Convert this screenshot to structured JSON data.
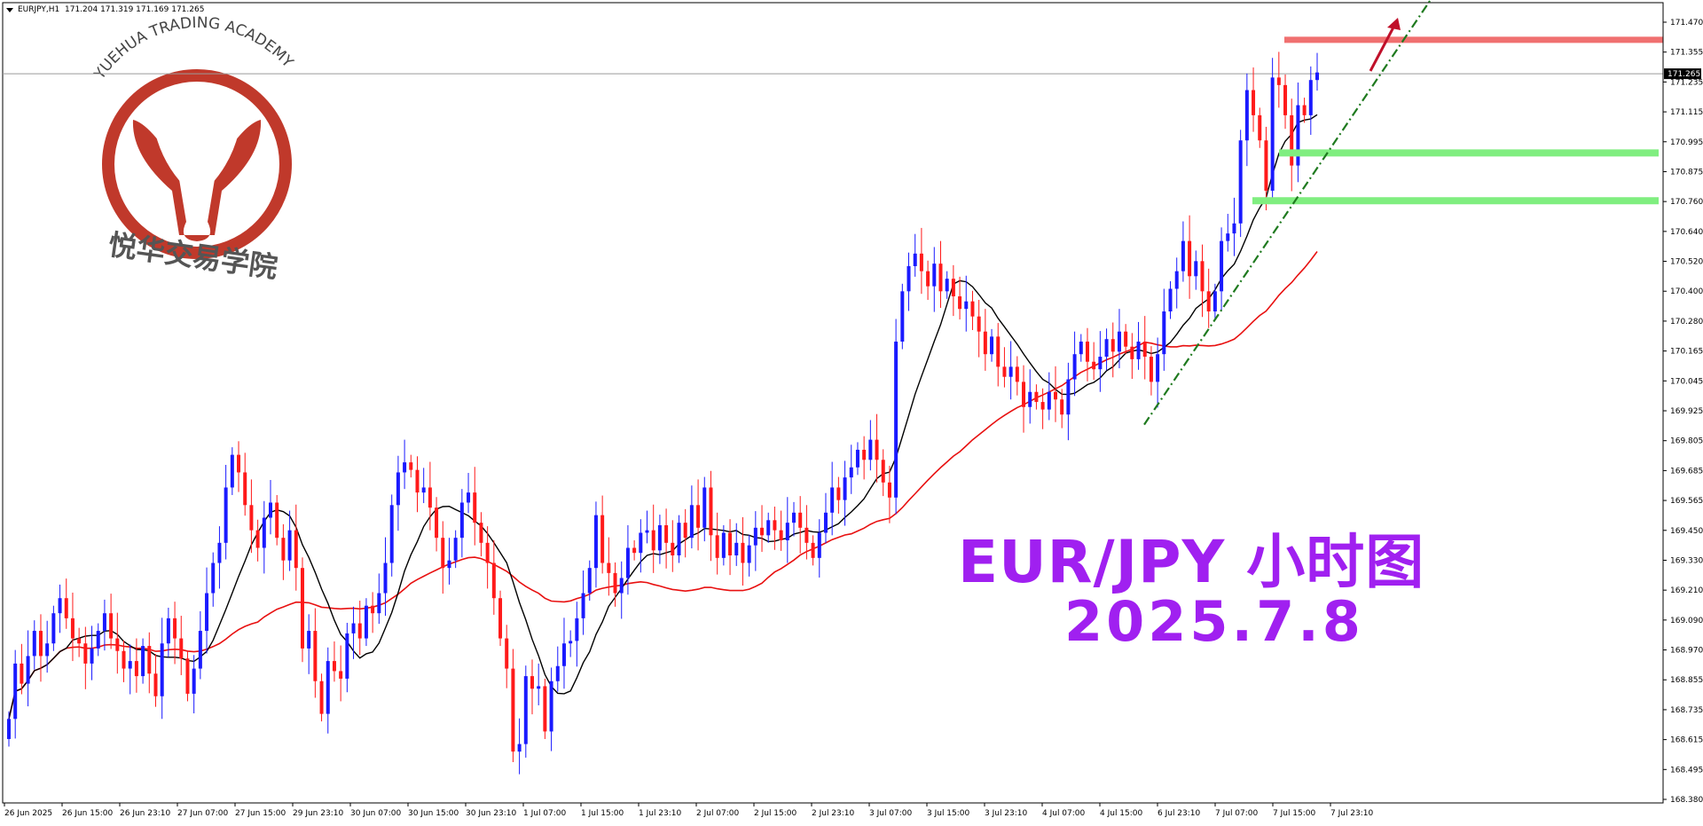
{
  "header": {
    "symbol": "EURJPY,H1",
    "ohlc": "171.204 171.319 171.169 171.265"
  },
  "logo": {
    "arc_text": "YUEHUA TRADING ACADEMY",
    "cn_text": "悦华交易学院",
    "color": "#c0392b"
  },
  "overlay": {
    "title": "EUR/JPY  小时图",
    "date": "2025.7.8",
    "color": "#a020f0"
  },
  "chart_data": {
    "type": "candlestick",
    "y_ticks": [
      "171.470",
      "171.355",
      "171.235",
      "171.115",
      "170.995",
      "170.875",
      "170.760",
      "170.640",
      "170.520",
      "170.400",
      "170.280",
      "170.165",
      "170.045",
      "169.925",
      "169.805",
      "169.685",
      "169.565",
      "169.450",
      "169.330",
      "169.210",
      "169.090",
      "168.970",
      "168.855",
      "168.735",
      "168.615",
      "168.495",
      "168.380"
    ],
    "ylim": [
      168.38,
      171.47
    ],
    "current_price": "171.265",
    "x_ticks": [
      "26 Jun 2025",
      "26 Jun 15:00",
      "26 Jun 23:10",
      "27 Jun 07:00",
      "27 Jun 15:00",
      "29 Jun 23:10",
      "30 Jun 07:00",
      "30 Jun 15:00",
      "30 Jun 23:10",
      "1 Jul 07:00",
      "1 Jul 15:00",
      "1 Jul 23:10",
      "2 Jul 07:00",
      "2 Jul 15:00",
      "2 Jul 23:10",
      "3 Jul 07:00",
      "3 Jul 15:00",
      "3 Jul 23:10",
      "4 Jul 07:00",
      "4 Jul 15:00",
      "6 Jul 23:10",
      "7 Jul 07:00",
      "7 Jul 15:00",
      "7 Jul 23:10"
    ],
    "up_color": "#1a1aff",
    "down_color": "#ff1a1a",
    "fast_ma_color": "#000000",
    "slow_ma_color": "#e81010",
    "resistance_level": 171.4,
    "support_levels": [
      170.95,
      170.76
    ],
    "trendline": {
      "from_price": 169.87,
      "to_price": 171.57
    },
    "closes": [
      168.7,
      168.92,
      168.84,
      168.95,
      169.05,
      168.95,
      169.0,
      169.12,
      169.18,
      169.1,
      169.02,
      169.0,
      168.92,
      168.98,
      169.05,
      169.12,
      169.02,
      168.97,
      168.9,
      168.93,
      168.87,
      168.99,
      168.88,
      168.79,
      169.0,
      169.1,
      169.02,
      168.94,
      168.8,
      168.9,
      169.05,
      169.2,
      169.32,
      169.4,
      169.62,
      169.75,
      169.68,
      169.55,
      169.45,
      169.38,
      169.5,
      169.56,
      169.42,
      169.33,
      169.45,
      169.3,
      168.98,
      169.05,
      168.85,
      168.72,
      168.93,
      168.89,
      168.86,
      169.04,
      169.08,
      169.02,
      169.15,
      169.12,
      169.2,
      169.32,
      169.55,
      169.68,
      169.72,
      169.69,
      169.6,
      169.62,
      169.54,
      169.42,
      169.3,
      169.33,
      169.42,
      169.56,
      169.6,
      169.48,
      169.4,
      169.32,
      169.18,
      169.02,
      168.9,
      168.57,
      168.6,
      168.87,
      168.82,
      168.83,
      168.65,
      168.85,
      168.91,
      169.0,
      169.01,
      169.1,
      169.2,
      169.3,
      169.51,
      169.32,
      169.28,
      169.2,
      169.26,
      169.38,
      169.36,
      169.44,
      169.45,
      169.37,
      169.47,
      169.4,
      169.35,
      169.48,
      169.42,
      169.55,
      169.46,
      169.62,
      169.43,
      169.34,
      169.44,
      169.35,
      169.4,
      169.32,
      169.39,
      169.46,
      169.43,
      169.49,
      169.45,
      169.41,
      169.48,
      169.52,
      169.46,
      169.4,
      169.34,
      169.44,
      169.52,
      169.62,
      169.57,
      169.66,
      169.7,
      169.77,
      169.73,
      169.81,
      169.73,
      169.64,
      169.58,
      170.2,
      170.4,
      170.5,
      170.55,
      170.48,
      170.42,
      170.51,
      170.4,
      170.45,
      170.38,
      170.33,
      170.36,
      170.3,
      170.24,
      170.15,
      170.22,
      170.1,
      170.06,
      170.1,
      170.04,
      169.94,
      170.0,
      169.96,
      169.93,
      170.0,
      169.97,
      169.91,
      170.05,
      170.15,
      170.2,
      170.12,
      170.09,
      170.14,
      170.21,
      170.16,
      170.24,
      170.18,
      170.13,
      170.2,
      170.14,
      170.04,
      170.15,
      170.32,
      170.41,
      170.48,
      170.6,
      170.46,
      170.52,
      170.4,
      170.32,
      170.4,
      170.6,
      170.63,
      170.67,
      171.0,
      171.2,
      171.1,
      171.0,
      170.8,
      171.25,
      171.22,
      171.1,
      170.9,
      171.14,
      171.1,
      171.24,
      171.27
    ],
    "opens": [
      168.62,
      168.7,
      168.92,
      168.84,
      168.95,
      169.05,
      168.95,
      169.0,
      169.12,
      169.18,
      169.1,
      169.02,
      169.0,
      168.92,
      168.98,
      169.05,
      169.12,
      169.02,
      168.97,
      168.9,
      168.93,
      168.87,
      168.99,
      168.88,
      168.79,
      169.0,
      169.1,
      169.02,
      168.94,
      168.8,
      168.9,
      169.05,
      169.2,
      169.32,
      169.4,
      169.62,
      169.75,
      169.68,
      169.55,
      169.45,
      169.38,
      169.5,
      169.56,
      169.42,
      169.33,
      169.45,
      169.3,
      168.98,
      169.05,
      168.85,
      168.72,
      168.93,
      168.89,
      168.86,
      169.04,
      169.08,
      169.02,
      169.15,
      169.12,
      169.2,
      169.32,
      169.55,
      169.68,
      169.72,
      169.69,
      169.6,
      169.62,
      169.54,
      169.42,
      169.3,
      169.33,
      169.42,
      169.56,
      169.6,
      169.48,
      169.4,
      169.32,
      169.18,
      169.02,
      168.9,
      168.57,
      168.6,
      168.87,
      168.82,
      168.83,
      168.65,
      168.85,
      168.91,
      169.0,
      169.01,
      169.1,
      169.2,
      169.3,
      169.51,
      169.32,
      169.28,
      169.2,
      169.26,
      169.38,
      169.36,
      169.44,
      169.45,
      169.37,
      169.47,
      169.4,
      169.35,
      169.48,
      169.42,
      169.55,
      169.46,
      169.62,
      169.43,
      169.34,
      169.44,
      169.35,
      169.4,
      169.32,
      169.39,
      169.46,
      169.43,
      169.49,
      169.45,
      169.41,
      169.48,
      169.52,
      169.46,
      169.4,
      169.34,
      169.44,
      169.52,
      169.62,
      169.57,
      169.66,
      169.7,
      169.77,
      169.73,
      169.81,
      169.73,
      169.64,
      169.58,
      170.2,
      170.4,
      170.5,
      170.55,
      170.48,
      170.42,
      170.51,
      170.4,
      170.45,
      170.38,
      170.33,
      170.36,
      170.3,
      170.24,
      170.15,
      170.22,
      170.1,
      170.06,
      170.1,
      170.04,
      169.94,
      170.0,
      169.96,
      169.93,
      170.0,
      169.97,
      169.91,
      170.05,
      170.15,
      170.2,
      170.12,
      170.09,
      170.14,
      170.21,
      170.16,
      170.24,
      170.18,
      170.13,
      170.2,
      170.14,
      170.04,
      170.15,
      170.32,
      170.41,
      170.48,
      170.6,
      170.46,
      170.52,
      170.4,
      170.32,
      170.4,
      170.6,
      170.63,
      170.67,
      171.0,
      171.2,
      171.1,
      171.0,
      170.8,
      171.25,
      171.22,
      171.1,
      170.9,
      171.14,
      171.1,
      171.24
    ]
  }
}
